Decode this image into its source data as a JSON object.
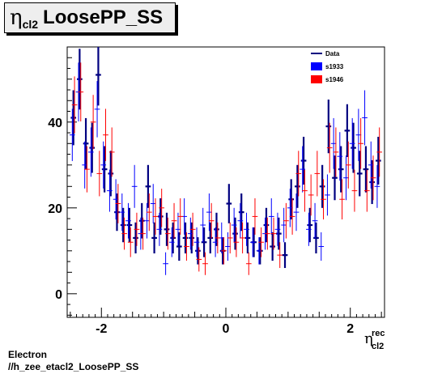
{
  "title": {
    "symbol": "η",
    "subscript": "cl2",
    "main": "LoosePP_SS"
  },
  "footer": {
    "line1": "Electron",
    "line2": "//h_zee_etacl2_LoosePP_SS"
  },
  "colors": {
    "Data": "#000080",
    "s1933": "#0000ff",
    "s1946": "#ff0000"
  },
  "chart_data": {
    "type": "scatter",
    "title": "",
    "xlabel": {
      "symbol": "η",
      "sup": "rec",
      "sub": "cl2"
    },
    "ylabel": "",
    "xlim": [
      -2.55,
      2.55
    ],
    "ylim": [
      -5.5,
      57.5
    ],
    "x_ticks": [
      -2,
      0,
      2
    ],
    "y_ticks": [
      0,
      20,
      40
    ],
    "grid": false,
    "legend": {
      "placement": "top-right",
      "entries": [
        "Data",
        "s1933",
        "s1946"
      ]
    },
    "series": [
      {
        "name": "Data",
        "x": [
          -2.45,
          -2.35,
          -2.25,
          -2.15,
          -2.05,
          -1.95,
          -1.85,
          -1.75,
          -1.65,
          -1.55,
          -1.45,
          -1.35,
          -1.25,
          -1.15,
          -1.05,
          -0.95,
          -0.85,
          -0.75,
          -0.65,
          -0.55,
          -0.45,
          -0.35,
          -0.25,
          -0.15,
          -0.05,
          0.05,
          0.15,
          0.25,
          0.35,
          0.45,
          0.55,
          0.65,
          0.75,
          0.85,
          0.95,
          1.05,
          1.15,
          1.25,
          1.35,
          1.45,
          1.55,
          1.65,
          1.75,
          1.85,
          1.95,
          2.05,
          2.15,
          2.25,
          2.35,
          2.45
        ],
        "y": [
          41,
          50,
          35,
          34,
          51,
          29,
          28,
          19,
          16,
          16,
          13,
          17,
          25,
          13,
          18,
          15,
          13,
          11,
          13,
          13,
          10,
          12,
          13,
          15,
          10,
          21,
          14,
          19,
          13,
          12,
          10,
          16,
          11,
          14,
          9,
          22,
          25,
          31,
          16,
          13,
          25,
          39,
          27,
          29,
          38,
          34,
          28,
          29,
          26,
          31
        ]
      },
      {
        "name": "s1933",
        "x": [
          -2.45,
          -2.35,
          -2.25,
          -2.15,
          -2.05,
          -1.95,
          -1.85,
          -1.75,
          -1.65,
          -1.55,
          -1.45,
          -1.35,
          -1.25,
          -1.15,
          -1.05,
          -0.95,
          -0.85,
          -0.75,
          -0.65,
          -0.55,
          -0.45,
          -0.35,
          -0.25,
          -0.15,
          -0.05,
          0.05,
          0.15,
          0.25,
          0.35,
          0.45,
          0.55,
          0.65,
          0.75,
          0.85,
          0.95,
          1.05,
          1.15,
          1.25,
          1.35,
          1.45,
          1.55,
          1.65,
          1.75,
          1.85,
          1.95,
          2.05,
          2.15,
          2.25,
          2.35,
          2.45
        ],
        "y": [
          37,
          47,
          30,
          33,
          43,
          30,
          24,
          22,
          19,
          17,
          25,
          14,
          17,
          21,
          15,
          7,
          12,
          15,
          18,
          14,
          12,
          16,
          19,
          12,
          13,
          11,
          16,
          17,
          15,
          12,
          10,
          14,
          18,
          15,
          16,
          20,
          19,
          29,
          15,
          17,
          11,
          23,
          35,
          32,
          27,
          35,
          37,
          41,
          30,
          25
        ]
      },
      {
        "name": "s1946",
        "x": [
          -2.45,
          -2.35,
          -2.25,
          -2.15,
          -2.05,
          -1.95,
          -1.85,
          -1.75,
          -1.65,
          -1.55,
          -1.45,
          -1.35,
          -1.25,
          -1.15,
          -1.05,
          -0.95,
          -0.85,
          -0.75,
          -0.65,
          -0.55,
          -0.45,
          -0.35,
          -0.25,
          -0.15,
          -0.05,
          0.05,
          0.15,
          0.25,
          0.35,
          0.45,
          0.55,
          0.65,
          0.75,
          0.85,
          0.95,
          1.05,
          1.15,
          1.25,
          1.35,
          1.45,
          1.55,
          1.65,
          1.75,
          1.85,
          1.95,
          2.05,
          2.15,
          2.25,
          2.35,
          2.45
        ],
        "y": [
          44,
          47,
          29,
          40,
          28,
          37,
          33,
          21,
          14,
          12,
          15,
          14,
          19,
          18,
          20,
          14,
          17,
          18,
          11,
          15,
          8,
          7,
          17,
          13,
          10,
          13,
          12,
          13,
          7,
          18,
          12,
          14,
          14,
          9,
          17,
          18,
          28,
          24,
          23,
          28,
          22,
          34,
          33,
          22,
          30,
          24,
          35,
          24,
          27,
          33
        ]
      }
    ]
  }
}
